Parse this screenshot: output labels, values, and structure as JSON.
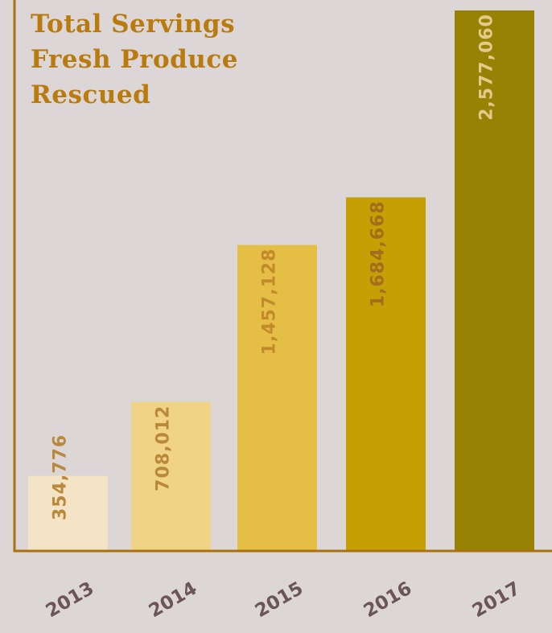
{
  "chart_data": {
    "type": "bar",
    "title_lines": [
      "Total Servings",
      "Fresh Produce",
      "Rescued"
    ],
    "categories": [
      "2013",
      "2014",
      "2015",
      "2016",
      "2017"
    ],
    "values": [
      354776,
      708012,
      1457128,
      1684668,
      2577060
    ],
    "value_labels": [
      "354,776",
      "708,012",
      "1,457,128",
      "1,684,668",
      "2,577,060"
    ],
    "bar_colors": [
      "#f2e4c4",
      "#f0d385",
      "#e5bf45",
      "#c5a004",
      "#988204"
    ],
    "label_colors": [
      "#b9883a",
      "#b9883a",
      "#c38a2c",
      "#a46d1d",
      "#e3c98a"
    ],
    "axis_color": "#a8720f",
    "ylim": [
      0,
      2577060
    ],
    "grid": false,
    "legend": "none"
  }
}
